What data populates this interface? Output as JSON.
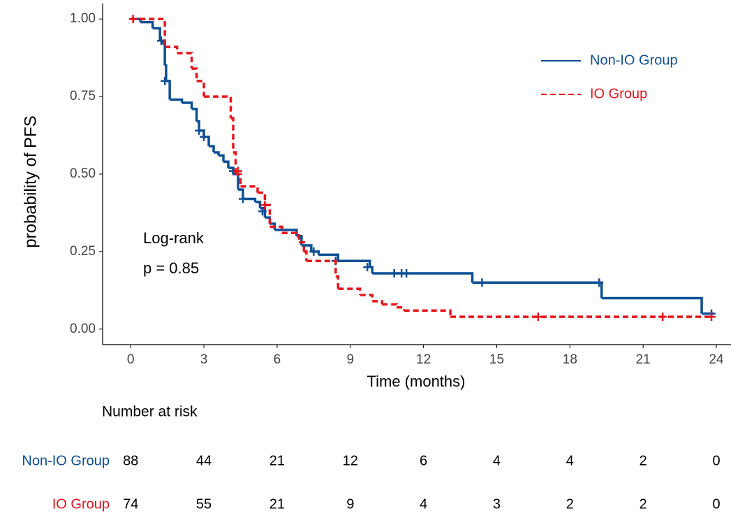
{
  "chart_data": {
    "type": "km",
    "y_label": "probability of  PFS",
    "x_label": "Time (months)",
    "xlim": [
      -1.15,
      24.6
    ],
    "ylim": [
      -0.05,
      1.05
    ],
    "xticks": [
      0,
      3,
      6,
      9,
      12,
      15,
      18,
      21,
      24
    ],
    "yticks": [
      {
        "value": 0,
        "label": "0.00"
      },
      {
        "value": 0.25,
        "label": "0.25"
      },
      {
        "value": 0.5,
        "label": "0.50"
      },
      {
        "value": 0.75,
        "label": "0.75"
      },
      {
        "value": 1,
        "label": "1.00"
      }
    ],
    "legend": "top-right",
    "annotations": [
      "Log-rank",
      "p = 0.85"
    ],
    "series": [
      {
        "name": "Non-IO Group",
        "color": "#0d4f96",
        "dash": false,
        "x": [
          0,
          0.4,
          0.9,
          1.2,
          1.3,
          1.4,
          1.45,
          1.6,
          2.1,
          2.5,
          2.7,
          2.8,
          3.0,
          3.2,
          3.4,
          3.6,
          3.8,
          4.0,
          4.2,
          4.4,
          4.6,
          5.1,
          5.3,
          5.5,
          5.7,
          5.9,
          6.8,
          7.0,
          7.4,
          7.7,
          8.5,
          9.8,
          9.9,
          14.0,
          19.3,
          23.4,
          23.9
        ],
        "values": [
          1.0,
          0.99,
          0.97,
          0.93,
          0.92,
          0.85,
          0.8,
          0.74,
          0.73,
          0.71,
          0.67,
          0.64,
          0.62,
          0.59,
          0.57,
          0.56,
          0.54,
          0.52,
          0.5,
          0.45,
          0.42,
          0.41,
          0.39,
          0.36,
          0.34,
          0.32,
          0.3,
          0.27,
          0.25,
          0.24,
          0.22,
          0.2,
          0.18,
          0.15,
          0.1,
          0.05,
          0.05
        ],
        "censor_x": [
          1.25,
          1.4,
          2.8,
          3.0,
          4.2,
          4.6,
          5.4,
          7.5,
          8.4,
          9.7,
          10.8,
          11.1,
          11.3,
          14.4,
          19.2,
          23.8
        ],
        "censor_values": [
          0.93,
          0.8,
          0.64,
          0.62,
          0.51,
          0.42,
          0.38,
          0.25,
          0.22,
          0.2,
          0.18,
          0.18,
          0.18,
          0.15,
          0.15,
          0.05
        ]
      },
      {
        "name": "IO Group",
        "color": "#e8141c",
        "dash": true,
        "x": [
          0,
          1.4,
          1.9,
          2.5,
          2.7,
          3.0,
          4.1,
          4.2,
          4.3,
          4.5,
          5.2,
          5.5,
          5.7,
          6.2,
          6.9,
          7.1,
          7.2,
          8.4,
          8.5,
          9.4,
          9.9,
          10.3,
          10.9,
          11.2,
          13.1,
          23.9
        ],
        "values": [
          1.0,
          0.91,
          0.89,
          0.84,
          0.8,
          0.75,
          0.68,
          0.57,
          0.5,
          0.46,
          0.44,
          0.4,
          0.33,
          0.31,
          0.28,
          0.25,
          0.22,
          0.17,
          0.13,
          0.11,
          0.09,
          0.08,
          0.07,
          0.06,
          0.04,
          0.04
        ],
        "censor_x": [
          0.1,
          4.4,
          5.5,
          16.7,
          21.8,
          23.8
        ],
        "censor_values": [
          1.0,
          0.51,
          0.4,
          0.04,
          0.04,
          0.04
        ]
      }
    ]
  },
  "risk_table": {
    "title": "Number at risk",
    "rows": [
      {
        "name": "Non-IO Group",
        "color": "#0d4f96",
        "values": [
          "88",
          "44",
          "21",
          "12",
          "6",
          "4",
          "4",
          "2",
          "0"
        ]
      },
      {
        "name": "IO Group",
        "color": "#e8141c",
        "values": [
          "74",
          "55",
          "21",
          "9",
          "4",
          "3",
          "2",
          "2",
          "0"
        ]
      }
    ]
  }
}
